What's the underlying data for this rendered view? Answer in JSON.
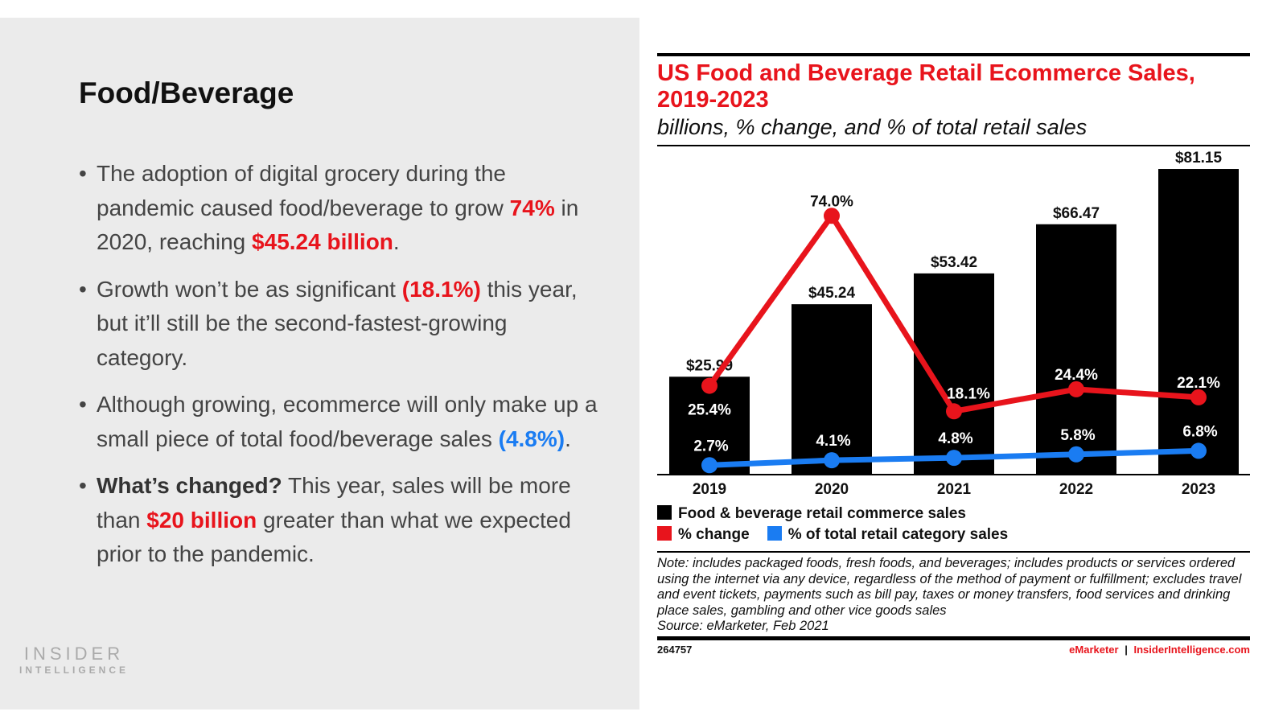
{
  "slide": {
    "title": "Food/Beverage",
    "bullets": [
      {
        "parts": [
          {
            "t": "The adoption of digital grocery during the pandemic caused food/beverage to grow "
          },
          {
            "t": "74%",
            "c": "r"
          },
          {
            "t": " in 2020, reaching "
          },
          {
            "t": "$45.24 billion",
            "c": "r"
          },
          {
            "t": "."
          }
        ]
      },
      {
        "parts": [
          {
            "t": "Growth won’t be as significant "
          },
          {
            "t": "(18.1%)",
            "c": "r"
          },
          {
            "t": " this year, but it’ll still be the second-fastest-growing category."
          }
        ]
      },
      {
        "parts": [
          {
            "t": "Although growing, ecommerce will only make up a small piece of total food/beverage sales "
          },
          {
            "t": "(4.8%)",
            "c": "b"
          },
          {
            "t": "."
          }
        ]
      },
      {
        "parts": [
          {
            "t": "What’s changed?",
            "c": "k"
          },
          {
            "t": " This year, sales will be more than "
          },
          {
            "t": "$20 billion",
            "c": "r"
          },
          {
            "t": " greater than what we expected prior to the pandemic."
          }
        ]
      }
    ],
    "logo": {
      "line1": "INSIDER",
      "line2": "INTELLIGENCE"
    }
  },
  "chart_data": {
    "type": "bar",
    "title": "US Food and Beverage Retail Ecommerce Sales, 2019-2023",
    "subtitle": "billions, % change, and % of total retail sales",
    "categories": [
      "2019",
      "2020",
      "2021",
      "2022",
      "2023"
    ],
    "series": [
      {
        "name": "Food & beverage retail commerce sales",
        "type": "bar",
        "values": [
          25.99,
          45.24,
          53.42,
          66.47,
          81.15
        ],
        "labels": [
          "$25.99",
          "$45.24",
          "$53.42",
          "$66.47",
          "$81.15"
        ],
        "color": "#000000"
      },
      {
        "name": "% change",
        "type": "line",
        "values": [
          25.4,
          74.0,
          18.1,
          24.4,
          22.1
        ],
        "labels": [
          "25.4%",
          "74.0%",
          "18.1%",
          "24.4%",
          "22.1%"
        ],
        "color": "#e8141c"
      },
      {
        "name": "% of total retail category sales",
        "type": "line",
        "values": [
          2.7,
          4.1,
          4.8,
          5.8,
          6.8
        ],
        "labels": [
          "2.7%",
          "4.1%",
          "4.8%",
          "5.8%",
          "6.8%"
        ],
        "color": "#1a7cf2"
      }
    ],
    "ylim_bars": [
      0,
      85
    ],
    "ylim_pct": [
      0,
      92
    ],
    "grid": false,
    "legend_position": "bottom-left",
    "note": "Note: includes packaged foods, fresh foods, and beverages; includes products or services ordered using the internet via any device, regardless of the method of payment or fulfillment; excludes travel and event tickets, payments such as bill pay, taxes or money transfers, food services and drinking place sales, gambling and other vice goods sales",
    "source": "Source: eMarketer, Feb 2021",
    "chart_id": "264757",
    "footer_brand": "eMarketer",
    "footer_sep": "|",
    "footer_site": "InsiderIntelligence.com"
  }
}
